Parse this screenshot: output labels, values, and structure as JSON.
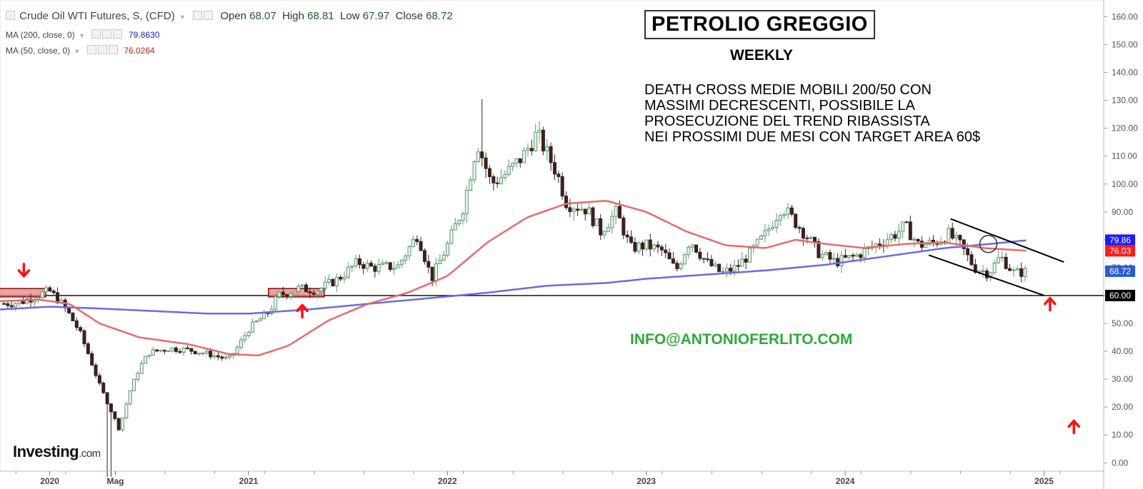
{
  "header": {
    "instrument": "Crude Oil WTI Futures, S, (CFD)",
    "open_label": "Open",
    "open_value": "68.07",
    "high_label": "High",
    "high_value": "68.81",
    "low_label": "Low",
    "low_value": "67.97",
    "close_label": "Close",
    "close_value": "68.72",
    "ma200_label": "MA (200, close, 0)",
    "ma200_value": "79.8630",
    "ma50_label": "MA (50, close, 0)",
    "ma50_value": "76.0264"
  },
  "annotations": {
    "title": "PETROLIO GREGGIO",
    "subtitle": "WEEKLY",
    "note_lines": [
      "DEATH CROSS MEDIE MOBILI 200/50 CON",
      "MASSIMI DECRESCENTI, POSSIBILE LA",
      "PROSECUZIONE DEL TREND RIBASSISTA",
      "NEI PROSSIMI DUE MESI CON TARGET AREA 60$"
    ],
    "email": "INFO@ANTONIOFERLITO.COM",
    "logo_main": "Investing",
    "logo_suffix": ".com"
  },
  "colors": {
    "up": "#5a9a6a",
    "down": "#3a2020",
    "ma200": "#6a6ae8",
    "ma50": "#ea6a6a",
    "ma200_label_bg": "#1c1cff",
    "ma50_label_bg": "#ff1c1c",
    "price_label_bg": "#2a5ad8",
    "level_label_bg": "#000000",
    "arrow": "#ff1010",
    "email": "#2eaa3a"
  },
  "chart_data": {
    "type": "candlestick",
    "title": "PETROLIO GREGGIO",
    "y_axis": {
      "ticks": [
        "0.00",
        "10.00",
        "20.00",
        "30.00",
        "40.00",
        "50.00",
        "60.00",
        "70.00",
        "80.00",
        "90.00",
        "100.00",
        "110.00",
        "120.00",
        "130.00",
        "140.00",
        "150.00",
        "160.00"
      ],
      "min": -3,
      "max": 166
    },
    "x_axis": {
      "labels": [
        "2020",
        "Mag",
        "2021",
        "2022",
        "2023",
        "2024",
        "2025"
      ],
      "label_dates": [
        2020.0,
        2020.33,
        2021.0,
        2022.0,
        2023.0,
        2024.0,
        2025.0
      ]
    },
    "price_labels": [
      {
        "text": "79.86",
        "value": 79.86,
        "kind": "ma200"
      },
      {
        "text": "76.03",
        "value": 76.03,
        "kind": "ma50"
      },
      {
        "text": "68.72",
        "value": 68.72,
        "kind": "price"
      },
      {
        "text": "60.00",
        "value": 60.0,
        "kind": "level"
      }
    ],
    "horizontal_line": 60.0,
    "channel": [
      {
        "from": [
          2024.42,
          74.5
        ],
        "to": [
          2025.0,
          60.0
        ]
      },
      {
        "from": [
          2024.53,
          87.5
        ],
        "to": [
          2025.1,
          72.0
        ]
      }
    ],
    "close_series": [
      [
        2019.75,
        57.0
      ],
      [
        2019.85,
        57.5
      ],
      [
        2019.95,
        60.5
      ],
      [
        2020.0,
        61.5
      ],
      [
        2020.05,
        58.0
      ],
      [
        2020.1,
        53.0
      ],
      [
        2020.15,
        47.0
      ],
      [
        2020.2,
        38.0
      ],
      [
        2020.25,
        28.0
      ],
      [
        2020.3,
        20.0
      ],
      [
        2020.35,
        12.0
      ],
      [
        2020.4,
        25.0
      ],
      [
        2020.45,
        34.0
      ],
      [
        2020.5,
        39.5
      ],
      [
        2020.6,
        41.0
      ],
      [
        2020.7,
        40.5
      ],
      [
        2020.8,
        39.0
      ],
      [
        2020.9,
        37.0
      ],
      [
        2020.95,
        42.0
      ],
      [
        2021.0,
        48.0
      ],
      [
        2021.1,
        54.0
      ],
      [
        2021.15,
        60.0
      ],
      [
        2021.25,
        62.5
      ],
      [
        2021.35,
        62.0
      ],
      [
        2021.45,
        66.0
      ],
      [
        2021.55,
        72.0
      ],
      [
        2021.62,
        70.0
      ],
      [
        2021.75,
        70.5
      ],
      [
        2021.85,
        82.0
      ],
      [
        2021.92,
        66.0
      ],
      [
        2022.0,
        78.0
      ],
      [
        2022.08,
        92.0
      ],
      [
        2022.15,
        115.0
      ],
      [
        2022.22,
        100.0
      ],
      [
        2022.3,
        104.0
      ],
      [
        2022.38,
        110.0
      ],
      [
        2022.45,
        118.0
      ],
      [
        2022.55,
        104.0
      ],
      [
        2022.6,
        93.0
      ],
      [
        2022.7,
        91.0
      ],
      [
        2022.77,
        83.0
      ],
      [
        2022.85,
        90.0
      ],
      [
        2022.92,
        77.0
      ],
      [
        2023.0,
        78.0
      ],
      [
        2023.08,
        76.0
      ],
      [
        2023.15,
        69.0
      ],
      [
        2023.22,
        80.0
      ],
      [
        2023.3,
        72.0
      ],
      [
        2023.38,
        68.0
      ],
      [
        2023.45,
        70.0
      ],
      [
        2023.52,
        75.0
      ],
      [
        2023.6,
        82.0
      ],
      [
        2023.68,
        92.0
      ],
      [
        2023.73,
        88.0
      ],
      [
        2023.8,
        82.0
      ],
      [
        2023.87,
        75.0
      ],
      [
        2023.95,
        72.0
      ],
      [
        2024.05,
        74.0
      ],
      [
        2024.15,
        78.0
      ],
      [
        2024.25,
        82.0
      ],
      [
        2024.3,
        85.0
      ],
      [
        2024.37,
        78.0
      ],
      [
        2024.45,
        79.0
      ],
      [
        2024.52,
        82.0
      ],
      [
        2024.58,
        78.0
      ],
      [
        2024.65,
        70.0
      ],
      [
        2024.72,
        68.0
      ],
      [
        2024.78,
        74.0
      ],
      [
        2024.85,
        68.0
      ],
      [
        2024.92,
        68.72
      ]
    ],
    "ma200_series": [
      [
        2019.75,
        55.0
      ],
      [
        2020.0,
        56.0
      ],
      [
        2020.2,
        55.5
      ],
      [
        2020.5,
        54.5
      ],
      [
        2020.8,
        53.5
      ],
      [
        2021.0,
        53.5
      ],
      [
        2021.3,
        55.0
      ],
      [
        2021.6,
        57.0
      ],
      [
        2021.9,
        59.0
      ],
      [
        2022.2,
        61.0
      ],
      [
        2022.5,
        63.5
      ],
      [
        2022.8,
        64.5
      ],
      [
        2023.0,
        66.0
      ],
      [
        2023.3,
        67.5
      ],
      [
        2023.6,
        69.0
      ],
      [
        2023.9,
        71.0
      ],
      [
        2024.2,
        74.0
      ],
      [
        2024.5,
        77.0
      ],
      [
        2024.8,
        79.0
      ],
      [
        2024.92,
        79.86
      ]
    ],
    "ma50_series": [
      [
        2019.75,
        58.0
      ],
      [
        2019.95,
        58.5
      ],
      [
        2020.1,
        57.0
      ],
      [
        2020.25,
        50.0
      ],
      [
        2020.45,
        45.0
      ],
      [
        2020.7,
        42.5
      ],
      [
        2020.9,
        39.0
      ],
      [
        2021.05,
        38.5
      ],
      [
        2021.2,
        42.0
      ],
      [
        2021.4,
        51.0
      ],
      [
        2021.6,
        57.0
      ],
      [
        2021.8,
        61.0
      ],
      [
        2022.0,
        67.0
      ],
      [
        2022.2,
        79.0
      ],
      [
        2022.4,
        88.0
      ],
      [
        2022.6,
        93.0
      ],
      [
        2022.8,
        94.0
      ],
      [
        2023.0,
        90.0
      ],
      [
        2023.2,
        83.0
      ],
      [
        2023.4,
        78.0
      ],
      [
        2023.6,
        77.0
      ],
      [
        2023.75,
        80.0
      ],
      [
        2023.9,
        78.5
      ],
      [
        2024.1,
        77.0
      ],
      [
        2024.3,
        78.5
      ],
      [
        2024.5,
        79.0
      ],
      [
        2024.7,
        77.0
      ],
      [
        2024.92,
        76.03
      ]
    ],
    "spikes": [
      {
        "date": 2020.3,
        "low": -5.0
      },
      {
        "date": 2022.18,
        "high": 130.5
      }
    ],
    "markers": [
      {
        "type": "arrow-down",
        "date": 2019.87,
        "value": 69.0
      },
      {
        "type": "arrow-up",
        "date": 2021.27,
        "value": 54.5
      },
      {
        "type": "arrow-up",
        "date": 2025.03,
        "value": 57.0
      },
      {
        "type": "arrow-up",
        "date": 2025.15,
        "value": 13.0
      }
    ],
    "highlight_boxes": [
      {
        "from": 2019.72,
        "to": 2019.98,
        "low": 59.5,
        "high": 62.5
      },
      {
        "from": 2021.1,
        "to": 2021.38,
        "low": 59.5,
        "high": 62.5
      }
    ],
    "circle": {
      "date": 2024.72,
      "value": 78.5
    }
  }
}
